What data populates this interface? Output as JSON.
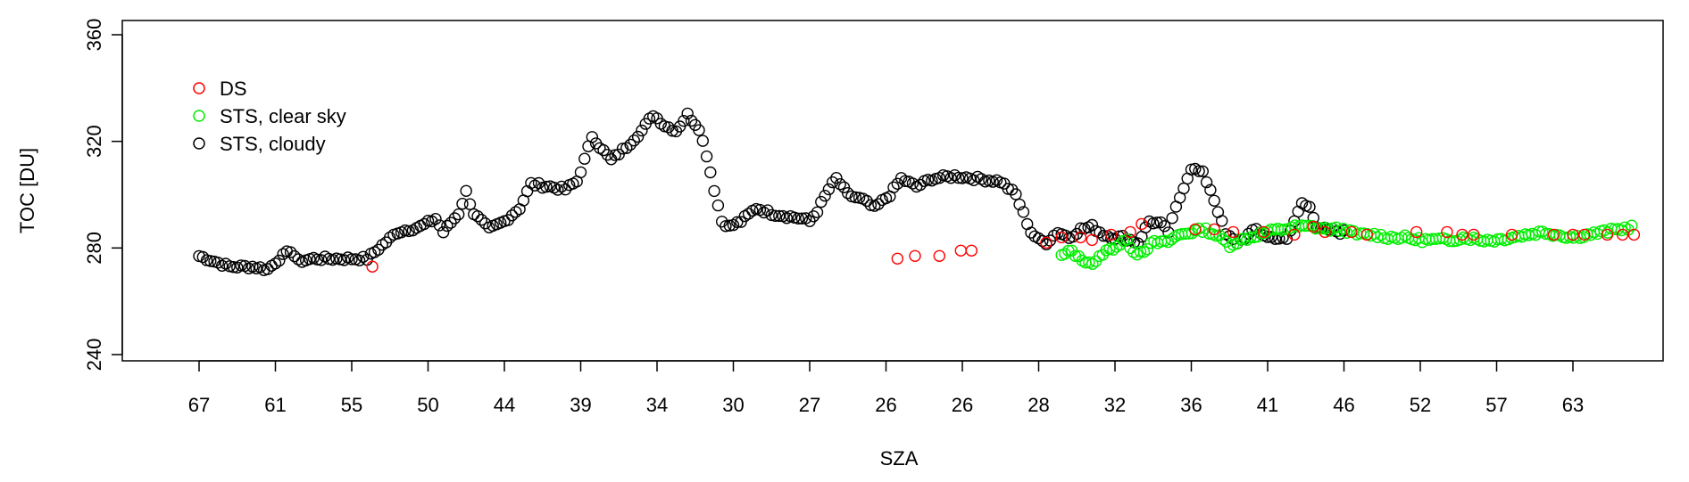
{
  "chart_data": {
    "type": "scatter",
    "title": "",
    "xlabel": "SZA",
    "ylabel": "TOC [DU]",
    "ylim": [
      234,
      364
    ],
    "yticks": [
      240,
      280,
      320,
      360
    ],
    "xticks": [
      "67",
      "61",
      "55",
      "50",
      "44",
      "39",
      "34",
      "30",
      "27",
      "26",
      "26",
      "28",
      "32",
      "36",
      "41",
      "46",
      "52",
      "57",
      "63"
    ],
    "x_order_note_index_range": [
      0,
      18.8
    ],
    "grid": false,
    "legend_position": "top-left",
    "series": [
      {
        "name": "DS",
        "color": "#ff0000",
        "points": [
          [
            2.27,
            273
          ],
          [
            9.15,
            276
          ],
          [
            9.38,
            277
          ],
          [
            9.7,
            277
          ],
          [
            9.98,
            279
          ],
          [
            10.12,
            279
          ],
          [
            11.1,
            282
          ],
          [
            11.3,
            284
          ],
          [
            11.55,
            284
          ],
          [
            11.7,
            283
          ],
          [
            11.95,
            285
          ],
          [
            12.2,
            286
          ],
          [
            12.35,
            289
          ],
          [
            13.05,
            287
          ],
          [
            13.3,
            287
          ],
          [
            13.55,
            286
          ],
          [
            13.95,
            286
          ],
          [
            14.35,
            285
          ],
          [
            14.6,
            288
          ],
          [
            14.75,
            286
          ],
          [
            15.1,
            286
          ],
          [
            15.3,
            285
          ],
          [
            15.95,
            286
          ],
          [
            16.35,
            286
          ],
          [
            16.55,
            285
          ],
          [
            16.7,
            285
          ],
          [
            17.2,
            285
          ],
          [
            17.75,
            285
          ],
          [
            18.0,
            285
          ],
          [
            18.15,
            285
          ],
          [
            18.45,
            285
          ],
          [
            18.65,
            285
          ],
          [
            18.8,
            285
          ]
        ]
      },
      {
        "name": "STS, clear sky",
        "color": "#00ee00",
        "points": []
      },
      {
        "name": "STS, cloudy",
        "color": "#000000",
        "points": []
      }
    ]
  }
}
